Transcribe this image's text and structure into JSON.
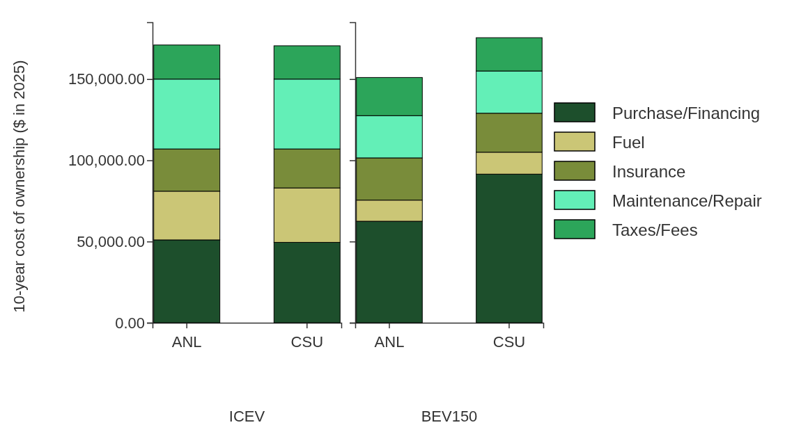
{
  "chart_data": [
    {
      "type": "bar",
      "stacked": true,
      "xlabel": "ICEV",
      "ylabel": "10-year cost of ownership ($ in 2025)",
      "categories": [
        "ANL",
        "CSU"
      ],
      "ylim": [
        0,
        185000
      ],
      "yticks": [
        {
          "value": 0,
          "label": "0.00"
        },
        {
          "value": 50000,
          "label": "50,000.00"
        },
        {
          "value": 100000,
          "label": "100,000.00"
        },
        {
          "value": 150000,
          "label": "150,000.00"
        }
      ],
      "grid": false,
      "legend": false,
      "series": [
        {
          "color": "#1d4f2c",
          "values": [
            51000,
            49500
          ]
        },
        {
          "color": "#cbc676",
          "values": [
            30000,
            33500
          ]
        },
        {
          "color": "#798c3a",
          "values": [
            26000,
            24000
          ]
        },
        {
          "color": "#63efb7",
          "values": [
            43000,
            43000
          ]
        },
        {
          "color": "#2ca55a",
          "values": [
            21000,
            20500
          ]
        }
      ]
    },
    {
      "type": "bar",
      "stacked": true,
      "xlabel": "BEV150",
      "categories": [
        "ANL",
        "CSU"
      ],
      "ylim": [
        0,
        185000
      ],
      "yticks": [
        {
          "value": 0,
          "label": null
        },
        {
          "value": 50000,
          "label": null
        },
        {
          "value": 100000,
          "label": null
        },
        {
          "value": 150000,
          "label": null
        }
      ],
      "tick_labels": "x",
      "grid": false,
      "legend": "right",
      "series": [
        {
          "name": "Purchase/Financing",
          "color": "#1d4f2c",
          "values": [
            62500,
            91500
          ]
        },
        {
          "name": "Fuel",
          "color": "#cbc676",
          "values": [
            13000,
            13500
          ]
        },
        {
          "name": "Insurance",
          "color": "#798c3a",
          "values": [
            26000,
            24000
          ]
        },
        {
          "name": "Maintenance/Repair",
          "color": "#63efb7",
          "values": [
            26000,
            26000
          ]
        },
        {
          "name": "Taxes/Fees",
          "color": "#2ca55a",
          "values": [
            23500,
            20500
          ]
        }
      ]
    }
  ]
}
